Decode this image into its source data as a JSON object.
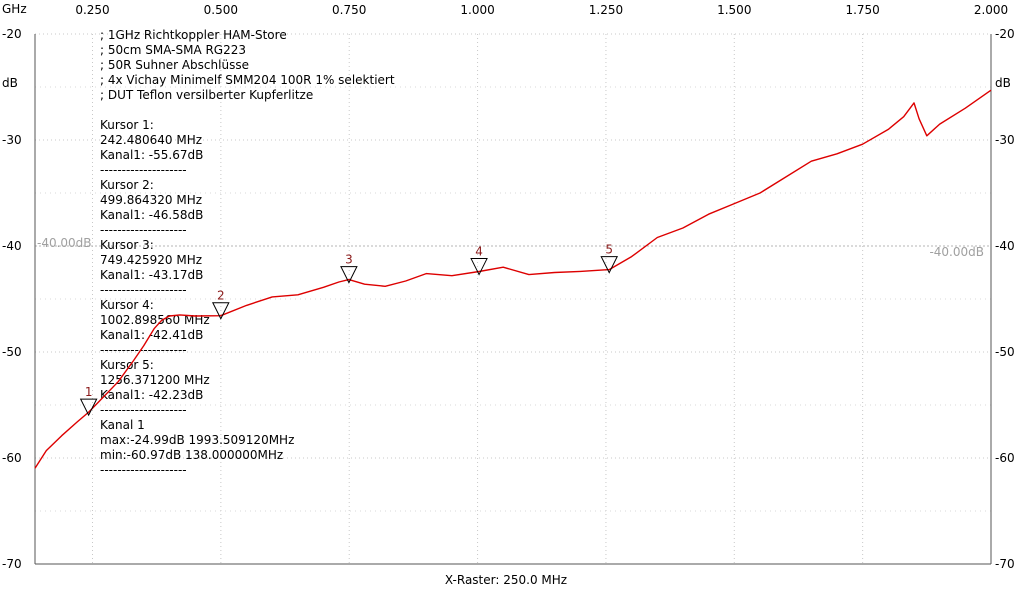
{
  "chart_data": {
    "type": "line",
    "x_unit": "GHz",
    "y_unit": "dB",
    "xlim": [
      0.138,
      2.0
    ],
    "ylim": [
      -70,
      -20
    ],
    "x_ticks": [
      "0.250",
      "0.500",
      "0.750",
      "1.000",
      "1.250",
      "1.500",
      "1.750",
      "2.000"
    ],
    "y_ticks": [
      "-20",
      "-30",
      "-40",
      "-50",
      "-60",
      "-70"
    ],
    "grid": true,
    "x_raster_label": "X-Raster: 250.0 MHz",
    "reference_label": "-40.00dB",
    "reference_value": -40,
    "notes": [
      "; 1GHz Richtkoppler HAM-Store",
      "; 50cm SMA-SMA RG223",
      "; 50R Suhner Abschlüsse",
      "; 4x Vichay Minimelf SMM204 100R 1% selektiert",
      "; DUT Teflon versilberter Kupferlitze"
    ],
    "cursor_blocks": [
      [
        "Kursor 1:",
        "242.480640 MHz",
        "Kanal1: -55.67dB",
        "--------------------"
      ],
      [
        "Kursor 2:",
        "499.864320 MHz",
        "Kanal1: -46.58dB",
        "--------------------"
      ],
      [
        "Kursor 3:",
        "749.425920 MHz",
        "Kanal1: -43.17dB",
        "--------------------"
      ],
      [
        "Kursor 4:",
        "1002.898560 MHz",
        "Kanal1: -42.41dB",
        "--------------------"
      ],
      [
        "Kursor 5:",
        "1256.371200 MHz",
        "Kanal1: -42.23dB",
        "--------------------"
      ],
      [
        "Kanal 1",
        "max:-24.99dB 1993.509120MHz",
        "min:-60.97dB 138.000000MHz",
        "--------------------"
      ]
    ],
    "markers": [
      {
        "label": "1",
        "x": 0.2425,
        "y": -55.67
      },
      {
        "label": "2",
        "x": 0.4999,
        "y": -46.58
      },
      {
        "label": "3",
        "x": 0.7494,
        "y": -43.17
      },
      {
        "label": "4",
        "x": 1.0029,
        "y": -42.41
      },
      {
        "label": "5",
        "x": 1.2564,
        "y": -42.23
      }
    ],
    "series": [
      {
        "color": "#dd0000",
        "x": [
          0.138,
          0.16,
          0.19,
          0.22,
          0.2425,
          0.27,
          0.3,
          0.33,
          0.35,
          0.37,
          0.385,
          0.4,
          0.42,
          0.45,
          0.4999,
          0.55,
          0.6,
          0.65,
          0.7,
          0.73,
          0.7494,
          0.78,
          0.82,
          0.86,
          0.9,
          0.95,
          1.0029,
          1.05,
          1.1,
          1.15,
          1.2,
          1.2564,
          1.3,
          1.35,
          1.4,
          1.45,
          1.5,
          1.55,
          1.6,
          1.65,
          1.7,
          1.75,
          1.8,
          1.83,
          1.85,
          1.86,
          1.875,
          1.9,
          1.95,
          2.0
        ],
        "y": [
          -60.97,
          -59.3,
          -57.9,
          -56.6,
          -55.67,
          -54.3,
          -52.8,
          -50.8,
          -49.4,
          -47.8,
          -47.0,
          -46.6,
          -46.5,
          -46.6,
          -46.58,
          -45.6,
          -44.8,
          -44.6,
          -43.9,
          -43.4,
          -43.17,
          -43.6,
          -43.8,
          -43.3,
          -42.6,
          -42.8,
          -42.41,
          -42.0,
          -42.7,
          -42.5,
          -42.4,
          -42.23,
          -41.0,
          -39.2,
          -38.3,
          -37.0,
          -36.0,
          -35.0,
          -33.5,
          -32.0,
          -31.3,
          -30.4,
          -29.0,
          -27.8,
          -26.5,
          -28.0,
          -29.6,
          -28.5,
          -27.0,
          -25.3
        ]
      }
    ]
  }
}
